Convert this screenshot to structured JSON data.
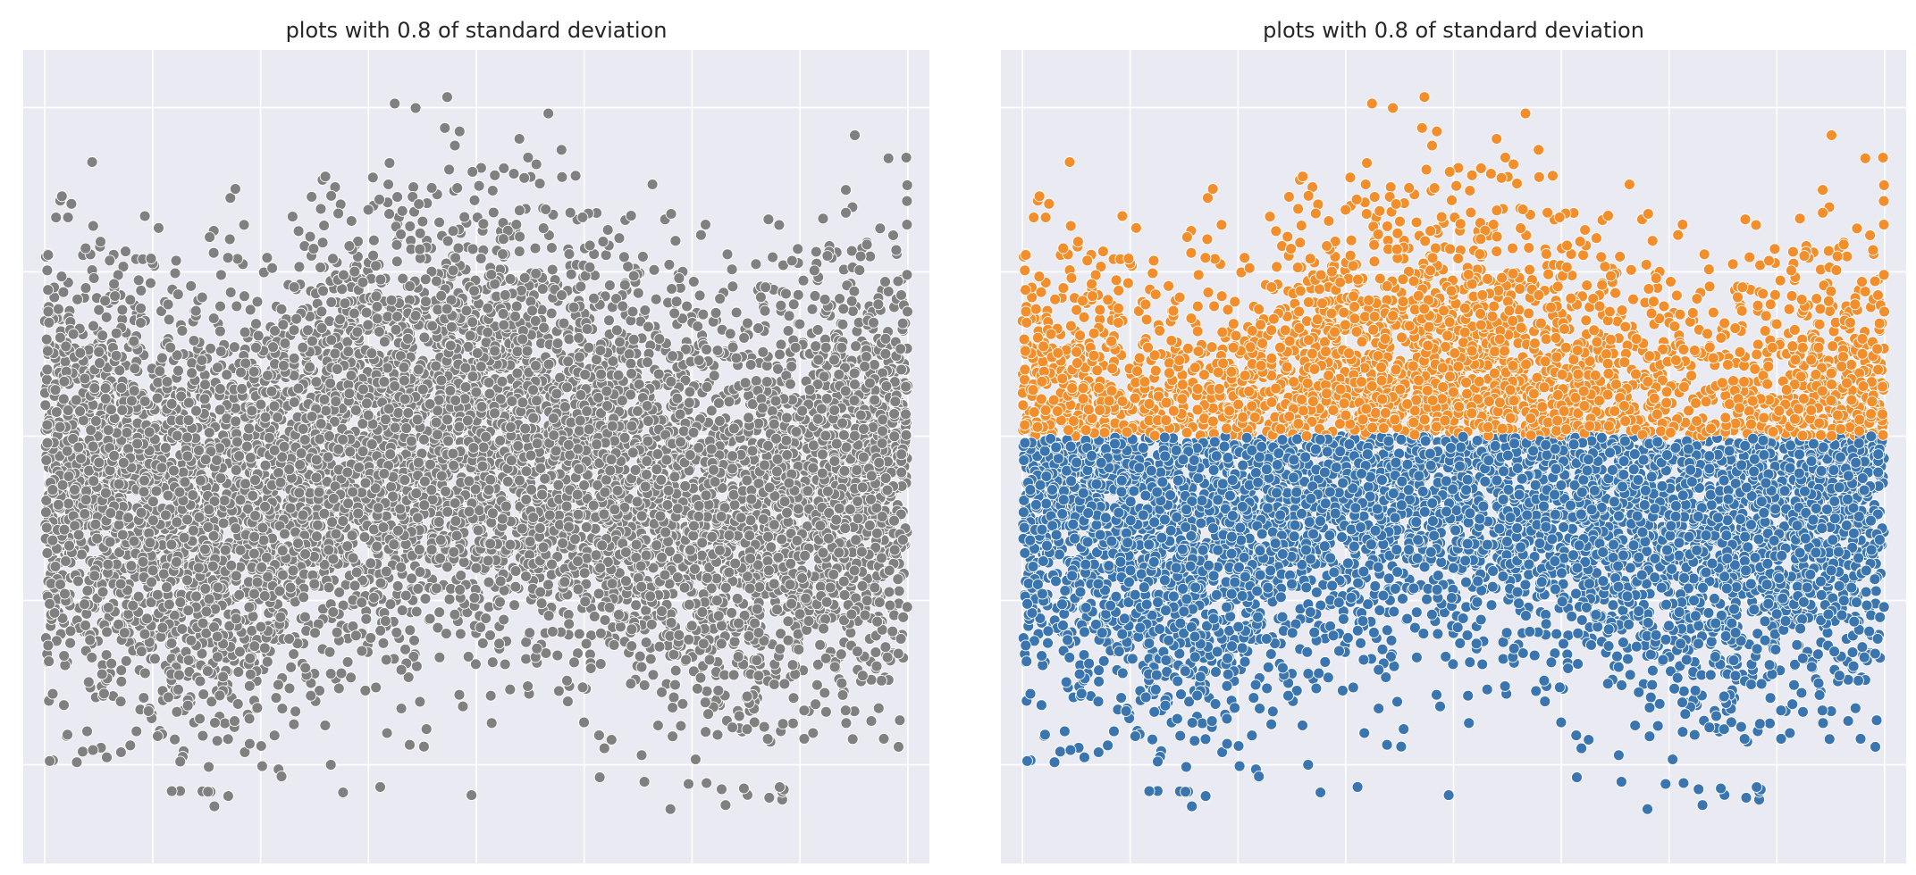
{
  "figure": {
    "background": "#ffffff",
    "panel_background": "#eaeaf2",
    "grid_color": "#ffffff"
  },
  "colors": {
    "all_points": "#808080",
    "above_threshold": "#f28e2b",
    "below_threshold": "#3a75b0",
    "marker_edge": "#ffffff"
  },
  "chart_data": [
    {
      "type": "scatter",
      "title": "plots with 0.8 of standard deviation",
      "xlabel": "",
      "ylabel": "",
      "tick_labels_visible": false,
      "grid": true,
      "legend": "none",
      "xlim": [
        -200,
        8200
      ],
      "ylim": [
        -2.6,
        2.35
      ],
      "x_gridlines": [
        0,
        1000,
        2000,
        3000,
        4000,
        5000,
        6000,
        7000,
        8000
      ],
      "y_gridlines": [
        -2,
        -1,
        0,
        1,
        2
      ],
      "n_points": 8000,
      "x_range": [
        0,
        8000
      ],
      "series": [
        {
          "color": "#808080",
          "points": "all",
          "distribution": "normal, std ≈ 0.64, mean varies along x",
          "mean_profile": {
            "x": [
              0,
              500,
              1000,
              1500,
              2000,
              2500,
              3000,
              3500,
              4000,
              4500,
              5000,
              5500,
              6000,
              6500,
              7000,
              7500,
              8000
            ],
            "y": [
              -0.2,
              -0.3,
              -0.42,
              -0.48,
              -0.35,
              -0.18,
              -0.02,
              0.06,
              0.08,
              0.0,
              -0.12,
              -0.28,
              -0.42,
              -0.5,
              -0.42,
              -0.25,
              -0.12
            ]
          },
          "y_extent": [
            -2.3,
            2.2
          ]
        }
      ]
    },
    {
      "type": "scatter",
      "title": "plots with 0.8 of standard deviation",
      "xlabel": "",
      "ylabel": "",
      "tick_labels_visible": false,
      "grid": true,
      "legend": "none",
      "xlim": [
        -200,
        8200
      ],
      "ylim": [
        -2.6,
        2.35
      ],
      "x_gridlines": [
        0,
        1000,
        2000,
        3000,
        4000,
        5000,
        6000,
        7000,
        8000
      ],
      "y_gridlines": [
        -2,
        -1,
        0,
        1,
        2
      ],
      "threshold": 0,
      "series": [
        {
          "color": "#f28e2b",
          "rule": "y > 0"
        },
        {
          "color": "#3a75b0",
          "rule": "y <= 0"
        }
      ]
    }
  ],
  "panels": {
    "left": {
      "title": "plots with 0.8 of standard deviation"
    },
    "right": {
      "title": "plots with 0.8 of standard deviation"
    }
  }
}
